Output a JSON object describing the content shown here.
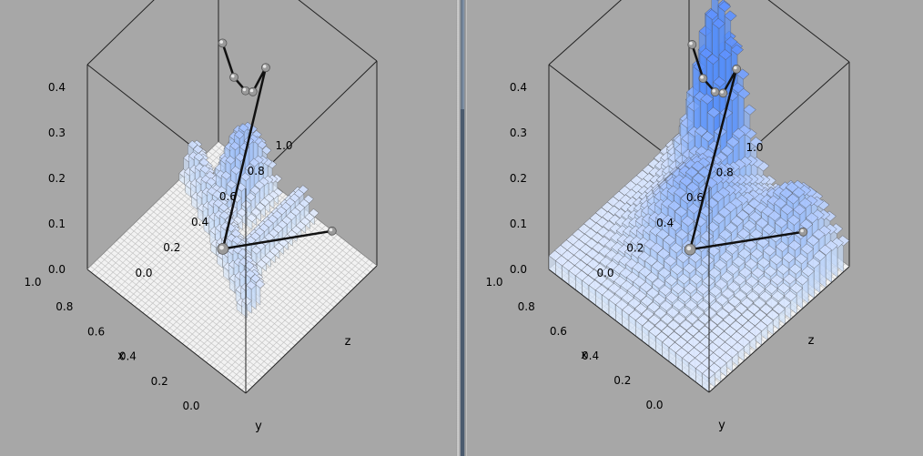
{
  "chart_data": [
    {
      "type": "surface",
      "title": "",
      "xlabel": "x",
      "ylabel": "y",
      "zlabel": "z",
      "x_ticks": [
        "0.0",
        "0.2",
        "0.4",
        "0.6",
        "0.8",
        "1.0"
      ],
      "z_ticks": [
        "0.0",
        "0.2",
        "0.4",
        "0.6",
        "0.8",
        "1.0"
      ],
      "v_ticks": [
        "0.0",
        "0.1",
        "0.2",
        "0.3",
        "0.4"
      ],
      "xlim": [
        0,
        1
      ],
      "zlim": [
        0,
        1
      ],
      "vlim": [
        0,
        0.45
      ],
      "grid": true,
      "surface": "sparse",
      "path": [
        [
          0.85,
          0.85,
          0.3
        ],
        [
          0.72,
          0.78,
          0.28
        ],
        [
          0.68,
          0.82,
          0.25
        ],
        [
          0.7,
          0.9,
          0.22
        ],
        [
          0.66,
          0.95,
          0.27
        ],
        [
          0.6,
          0.55,
          0.0
        ],
        [
          0.2,
          0.9,
          0.05
        ]
      ]
    },
    {
      "type": "surface",
      "title": "",
      "xlabel": "x",
      "ylabel": "y",
      "zlabel": "z",
      "x_ticks": [
        "0.0",
        "0.2",
        "0.4",
        "0.6",
        "0.8",
        "1.0"
      ],
      "z_ticks": [
        "0.0",
        "0.2",
        "0.4",
        "0.6",
        "0.8",
        "1.0"
      ],
      "v_ticks": [
        "0.0",
        "0.1",
        "0.2",
        "0.3",
        "0.4"
      ],
      "xlim": [
        0,
        1
      ],
      "zlim": [
        0,
        1
      ],
      "vlim": [
        0,
        0.45
      ],
      "grid": true,
      "surface": "full",
      "path": [
        [
          0.85,
          0.85,
          0.3
        ],
        [
          0.72,
          0.78,
          0.28
        ],
        [
          0.68,
          0.82,
          0.25
        ],
        [
          0.7,
          0.9,
          0.22
        ],
        [
          0.66,
          0.95,
          0.27
        ],
        [
          0.6,
          0.55,
          0.0
        ],
        [
          0.2,
          0.9,
          0.05
        ]
      ]
    }
  ]
}
